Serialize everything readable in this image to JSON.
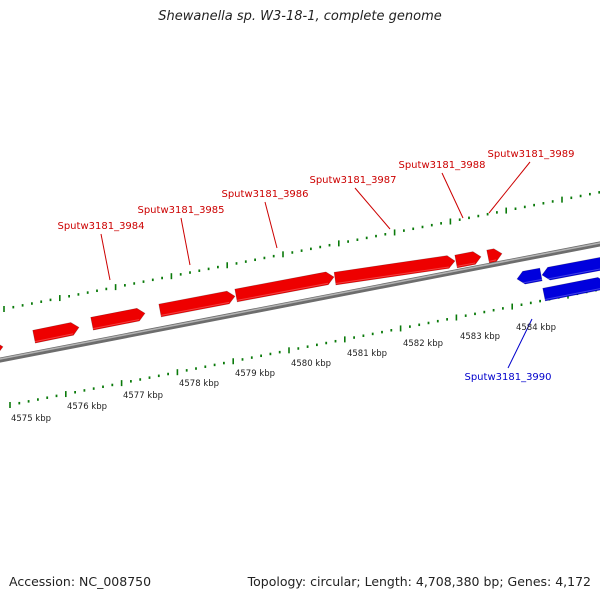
{
  "title": "Shewanella sp. W3-18-1, complete genome",
  "footer": {
    "accession": "Accession: NC_008750",
    "info": "Topology: circular; Length: 4,708,380 bp; Genes: 4,172"
  },
  "colors": {
    "forward_gene": "#ee0000",
    "reverse_gene": "#0000dd",
    "ticks": "#0a7a0a",
    "backbone": "#888888",
    "callout_forward": "#cc0000",
    "callout_reverse": "#0000cc"
  },
  "scale_labels": [
    "4575 kbp",
    "4576 kbp",
    "4577 kbp",
    "4578 kbp",
    "4579 kbp",
    "4580 kbp",
    "4581 kbp",
    "4582 kbp",
    "4583 kbp",
    "4584 kbp"
  ],
  "genes": [
    {
      "name": "Sputw3181_3984",
      "strand": "forward"
    },
    {
      "name": "Sputw3181_3985",
      "strand": "forward"
    },
    {
      "name": "Sputw3181_3986",
      "strand": "forward"
    },
    {
      "name": "Sputw3181_3987",
      "strand": "forward"
    },
    {
      "name": "Sputw3181_3988",
      "strand": "forward"
    },
    {
      "name": "Sputw3181_3989",
      "strand": "forward"
    },
    {
      "name": "Sputw3181_3990",
      "strand": "reverse"
    }
  ]
}
